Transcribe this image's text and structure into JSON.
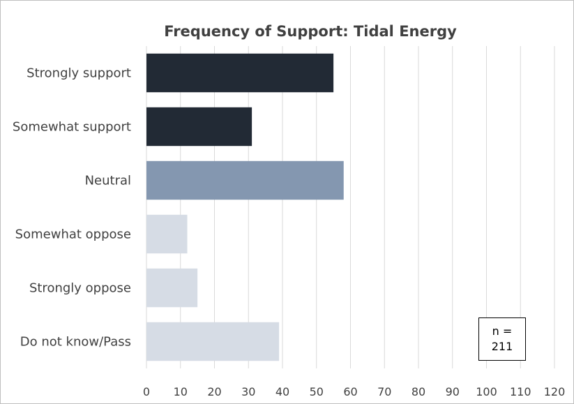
{
  "chart_data": {
    "type": "bar",
    "orientation": "horizontal",
    "title": "Frequency of Support: Tidal Energy",
    "categories": [
      "Strongly support",
      "Somewhat support",
      "Neutral",
      "Somewhat oppose",
      "Strongly oppose",
      "Do not know/Pass"
    ],
    "values": [
      55,
      31,
      58,
      12,
      15,
      39
    ],
    "bar_colors": [
      "#222a35",
      "#222a35",
      "#8497b0",
      "#d6dce5",
      "#d6dce5",
      "#d6dce5"
    ],
    "xlim": [
      0,
      120
    ],
    "xticks": [
      0,
      10,
      20,
      30,
      40,
      50,
      60,
      70,
      80,
      90,
      100,
      110,
      120
    ],
    "grid": "vertical",
    "xlabel": "",
    "ylabel": ""
  },
  "annotation": {
    "line1": "n =",
    "line2": "211"
  },
  "colors": {
    "gridline": "#d9d9d9",
    "text": "#404040"
  }
}
